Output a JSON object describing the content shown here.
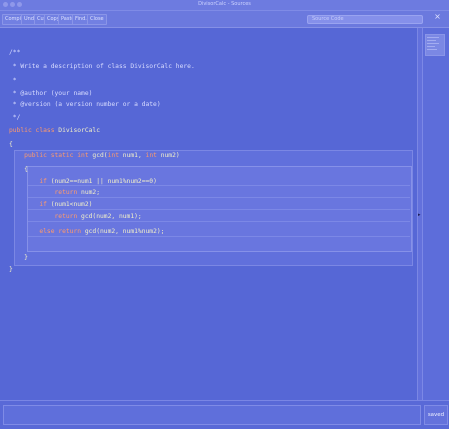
{
  "window": {
    "title": "DivisorCalc - Sources"
  },
  "toolbar": {
    "buttons": [
      "Compile",
      "Undo",
      "Cut",
      "Copy",
      "Paste",
      "Find...",
      "Close"
    ],
    "search_placeholder": "Source Code",
    "close_label": "×"
  },
  "editor": {
    "lines": [
      "/**",
      " * Write a description of class DivisorCalc here.",
      " *",
      " * @author (your name)",
      " * @version (a version number or a date)",
      " */",
      "public class DivisorCalc",
      "{",
      "    public static int gcd(int num1, int num2)",
      "    {",
      "        if (num2==num1 || num1%num2==0)",
      "            return num2;",
      "        if (num1<num2)",
      "            return gcd(num2, num1);",
      "        else return gcd(num2, num1%num2);",
      "",
      "    }",
      "}"
    ]
  },
  "status": {
    "message": "",
    "state": "saved"
  }
}
